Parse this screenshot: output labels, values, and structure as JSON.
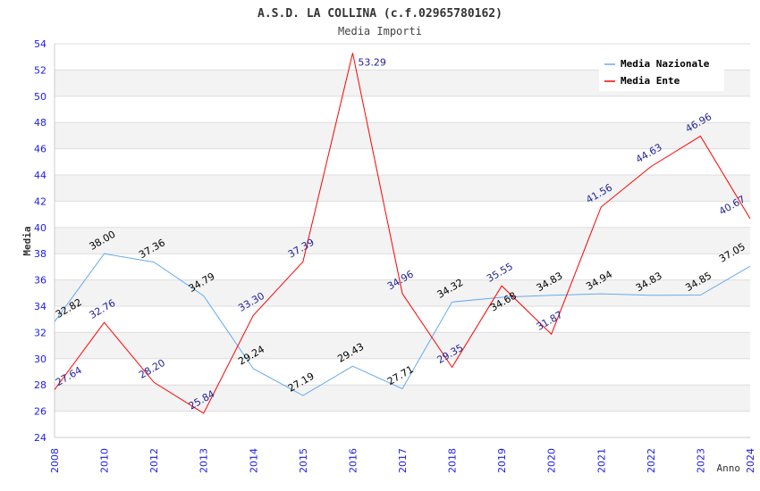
{
  "chart_data": {
    "type": "line",
    "title": "A.S.D. LA COLLINA (c.f.02965780162)",
    "subtitle": "Media Importi",
    "xlabel": "Anno",
    "ylabel": "Media",
    "ylim": [
      24,
      54
    ],
    "yticks": [
      "24",
      "26",
      "28",
      "30",
      "32",
      "34",
      "36",
      "38",
      "40",
      "42",
      "44",
      "46",
      "48",
      "50",
      "52",
      "54"
    ],
    "categories": [
      "2008",
      "2010",
      "2012",
      "2013",
      "2014",
      "2015",
      "2016",
      "2017",
      "2018",
      "2019",
      "2020",
      "2021",
      "2022",
      "2023",
      "2024"
    ],
    "legend_position": "top-right",
    "series": [
      {
        "name": "Media Nazionale",
        "color": "#66aaee",
        "label_color": "#000000",
        "values": [
          32.82,
          38.0,
          37.36,
          34.79,
          29.24,
          27.19,
          29.43,
          27.71,
          34.32,
          34.68,
          34.83,
          34.94,
          34.83,
          34.85,
          37.05
        ]
      },
      {
        "name": "Media Ente",
        "color": "#ff0000",
        "label_color": "#222299",
        "values": [
          27.64,
          32.76,
          28.2,
          25.84,
          33.3,
          37.39,
          53.29,
          34.96,
          29.35,
          35.55,
          31.87,
          41.56,
          44.63,
          46.96,
          40.67
        ]
      }
    ]
  }
}
